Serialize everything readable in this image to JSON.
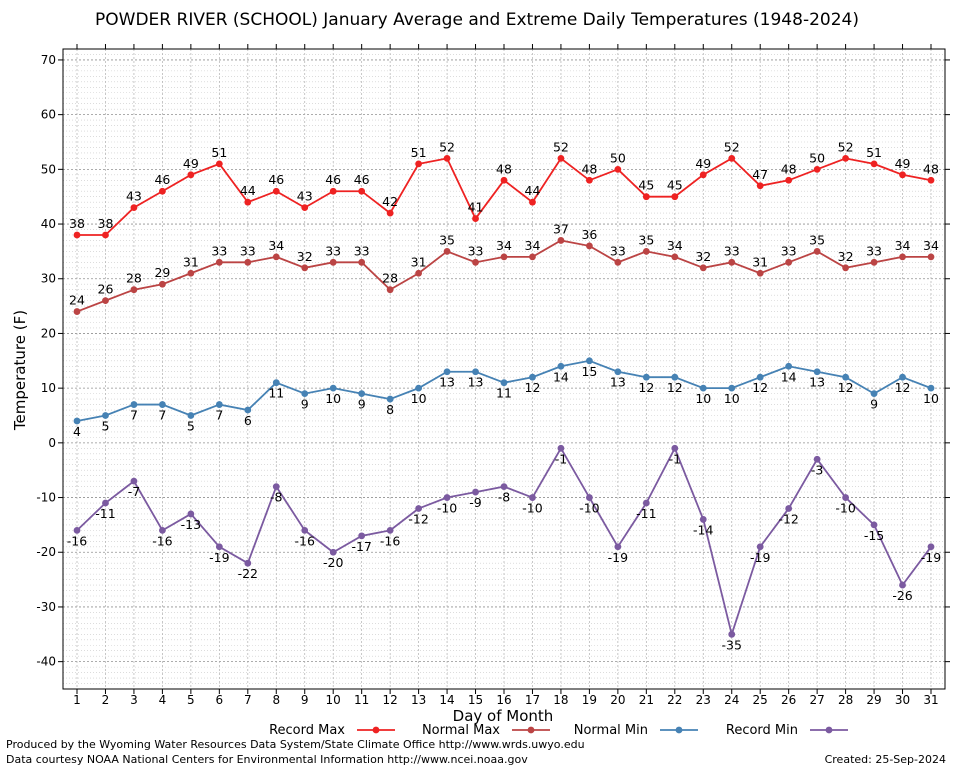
{
  "chart_data": {
    "type": "line",
    "title": "POWDER RIVER (SCHOOL) January Average and Extreme Daily Temperatures (1948-2024)",
    "xlabel": "Day of Month",
    "ylabel": "Temperature (F)",
    "ylim": [
      -45,
      72
    ],
    "yticks": [
      -40,
      -30,
      -20,
      -10,
      0,
      10,
      20,
      30,
      40,
      50,
      60,
      70
    ],
    "grid": true,
    "legend_position": "bottom",
    "x": [
      1,
      2,
      3,
      4,
      5,
      6,
      7,
      8,
      9,
      10,
      11,
      12,
      13,
      14,
      15,
      16,
      17,
      18,
      19,
      20,
      21,
      22,
      23,
      24,
      25,
      26,
      27,
      28,
      29,
      30,
      31
    ],
    "series": [
      {
        "name": "Record Max",
        "color": "#ee2222",
        "values": [
          38,
          38,
          43,
          46,
          49,
          51,
          44,
          46,
          43,
          46,
          46,
          42,
          51,
          52,
          41,
          48,
          44,
          52,
          48,
          50,
          45,
          45,
          49,
          52,
          47,
          48,
          50,
          52,
          51,
          49,
          48
        ]
      },
      {
        "name": "Normal Max",
        "color": "#bb4444",
        "values": [
          24,
          26,
          28,
          29,
          31,
          33,
          33,
          34,
          32,
          33,
          33,
          28,
          31,
          35,
          33,
          34,
          34,
          37,
          36,
          33,
          35,
          34,
          32,
          33,
          31,
          33,
          35,
          32,
          33,
          34,
          34
        ]
      },
      {
        "name": "Normal Min",
        "color": "#4682b4",
        "values": [
          4,
          5,
          7,
          7,
          5,
          7,
          6,
          11,
          9,
          10,
          9,
          8,
          10,
          13,
          13,
          11,
          12,
          14,
          15,
          13,
          12,
          12,
          10,
          10,
          12,
          14,
          13,
          12,
          9,
          12,
          10
        ]
      },
      {
        "name": "Record Min",
        "color": "#7b5aa0",
        "values": [
          -16,
          -11,
          -7,
          -16,
          -13,
          -19,
          -22,
          -8,
          -16,
          -20,
          -17,
          -16,
          -12,
          -10,
          -9,
          -8,
          -10,
          -1,
          -10,
          -19,
          -11,
          -1,
          -14,
          -35,
          -19,
          -12,
          -3,
          -10,
          -15,
          -26,
          -19
        ]
      }
    ]
  },
  "footer": {
    "line1": "Produced by the Wyoming Water Resources Data System/State Climate Office http://www.wrds.uwyo.edu",
    "line2": "Data courtesy NOAA National Centers for Environmental Information http://www.ncei.noaa.gov",
    "created": "Created:  25-Sep-2024"
  }
}
